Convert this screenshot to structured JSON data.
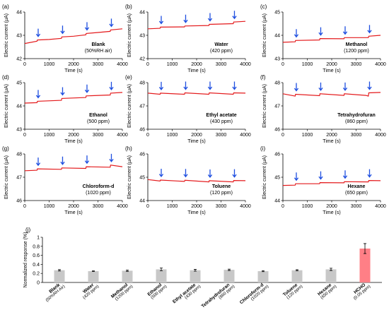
{
  "chart_data": [
    {
      "type": "line",
      "panel_label": "(a)",
      "annotation": "Blank",
      "annotation_sub": "(50%RH air)",
      "xlabel": "Time (s)",
      "ylabel": "Electric current (μA)",
      "xlim": [
        0,
        4000
      ],
      "ylim": [
        42,
        44
      ],
      "yticks": [
        42,
        43,
        44
      ],
      "xticks": [
        0,
        1000,
        2000,
        3000,
        4000
      ],
      "series": [
        {
          "x": [
            0,
            500,
            520,
            1000,
            1500,
            1520,
            2000,
            2500,
            2520,
            3000,
            3500,
            3520,
            4000
          ],
          "y": [
            42.65,
            42.75,
            42.8,
            42.82,
            42.87,
            42.93,
            42.96,
            43.02,
            43.08,
            43.12,
            43.17,
            43.23,
            43.28
          ]
        }
      ],
      "arrows_x": [
        550,
        1550,
        2550,
        3550
      ]
    },
    {
      "type": "line",
      "panel_label": "(b)",
      "annotation": "Water",
      "annotation_sub": "(420 ppm)",
      "xlabel": "Time (s)",
      "ylabel": "Electric current (μA)",
      "xlim": [
        0,
        4000
      ],
      "ylim": [
        42,
        44
      ],
      "yticks": [
        42,
        43,
        44
      ],
      "xticks": [
        0,
        1000,
        2000,
        3000,
        4000
      ],
      "series": [
        {
          "x": [
            0,
            500,
            520,
            1500,
            1520,
            2500,
            2520,
            3500,
            3520,
            4000
          ],
          "y": [
            43.28,
            43.3,
            43.35,
            43.36,
            43.4,
            43.42,
            43.47,
            43.5,
            43.57,
            43.6
          ]
        }
      ],
      "arrows_x": [
        550,
        1550,
        2550,
        3550
      ]
    },
    {
      "type": "line",
      "panel_label": "(c)",
      "annotation": "Methanol",
      "annotation_sub": "(1200 ppm)",
      "xlabel": "Time (s)",
      "ylabel": "Electric current (μA)",
      "xlim": [
        0,
        4000
      ],
      "ylim": [
        43,
        45
      ],
      "yticks": [
        43,
        44,
        45
      ],
      "xticks": [
        0,
        1000,
        2000,
        3000,
        4000
      ],
      "series": [
        {
          "x": [
            0,
            500,
            520,
            1500,
            1520,
            2500,
            2520,
            3500,
            3520,
            4000
          ],
          "y": [
            43.7,
            43.72,
            43.78,
            43.8,
            43.86,
            43.85,
            43.9,
            43.9,
            43.96,
            44.0
          ]
        }
      ],
      "arrows_x": [
        550,
        1550,
        2550,
        3550
      ]
    },
    {
      "type": "line",
      "panel_label": "(d)",
      "annotation": "Ethanol",
      "annotation_sub": "(500 ppm)",
      "xlabel": "Time (s)",
      "ylabel": "Electric current (μA)",
      "xlim": [
        0,
        4000
      ],
      "ylim": [
        43,
        45
      ],
      "yticks": [
        43,
        44,
        45
      ],
      "xticks": [
        0,
        1000,
        2000,
        3000,
        4000
      ],
      "series": [
        {
          "x": [
            0,
            500,
            520,
            1500,
            1520,
            2500,
            2520,
            3500,
            3520,
            4000
          ],
          "y": [
            44.12,
            44.14,
            44.2,
            44.24,
            44.32,
            44.36,
            44.43,
            44.47,
            44.55,
            44.58
          ]
        }
      ],
      "arrows_x": [
        550,
        1550,
        2550,
        3550
      ]
    },
    {
      "type": "line",
      "panel_label": "(e)",
      "annotation": "Ethyl acetate",
      "annotation_sub": "(430 ppm)",
      "xlabel": "Time (s)",
      "ylabel": "Electric current (μA)",
      "xlim": [
        0,
        4000
      ],
      "ylim": [
        46,
        48
      ],
      "yticks": [
        46,
        47,
        48
      ],
      "xticks": [
        0,
        1000,
        2000,
        3000,
        4000
      ],
      "series": [
        {
          "x": [
            0,
            500,
            520,
            1500,
            1520,
            2500,
            2520,
            3500,
            3520,
            4000
          ],
          "y": [
            47.55,
            47.5,
            47.55,
            47.5,
            47.56,
            47.5,
            47.56,
            47.5,
            47.56,
            47.55
          ]
        }
      ],
      "arrows_x": [
        550,
        1550,
        2550,
        3550
      ]
    },
    {
      "type": "line",
      "panel_label": "(f)",
      "annotation": "Tetrahydrofuran",
      "annotation_sub": "(860 ppm)",
      "xlabel": "Time (s)",
      "ylabel": "Electric current (μA)",
      "xlim": [
        0,
        4000
      ],
      "ylim": [
        46,
        48
      ],
      "yticks": [
        46,
        47,
        48
      ],
      "xticks": [
        0,
        1000,
        2000,
        3000,
        4000
      ],
      "series": [
        {
          "x": [
            0,
            500,
            520,
            1500,
            1520,
            2500,
            2520,
            3400,
            3500,
            3520,
            4000
          ],
          "y": [
            47.52,
            47.42,
            47.5,
            47.44,
            47.52,
            47.45,
            47.52,
            47.45,
            47.42,
            47.56,
            47.58
          ]
        }
      ],
      "arrows_x": [
        550,
        1550,
        2550,
        3550
      ]
    },
    {
      "type": "line",
      "panel_label": "(g)",
      "annotation": "Chloroform-d",
      "annotation_sub": "(1020 ppm)",
      "xlabel": "Time (s)",
      "ylabel": "Electric current (μA)",
      "xlim": [
        0,
        4000
      ],
      "ylim": [
        46,
        48
      ],
      "yticks": [
        46,
        47,
        48
      ],
      "xticks": [
        0,
        1000,
        2000,
        3000,
        4000
      ],
      "series": [
        {
          "x": [
            0,
            500,
            520,
            1500,
            1520,
            2500,
            2520,
            3500,
            3520,
            4000
          ],
          "y": [
            47.28,
            47.3,
            47.36,
            47.34,
            47.4,
            47.38,
            47.45,
            47.43,
            47.52,
            47.45
          ]
        }
      ],
      "arrows_x": [
        550,
        1550,
        2550,
        3550
      ]
    },
    {
      "type": "line",
      "panel_label": "(h)",
      "annotation": "Toluene",
      "annotation_sub": "(120 ppm)",
      "xlabel": "Time (s)",
      "ylabel": "Electric current (μA)",
      "xlim": [
        0,
        4000
      ],
      "ylim": [
        44,
        46
      ],
      "yticks": [
        44,
        45,
        46
      ],
      "xticks": [
        0,
        1000,
        2000,
        3000,
        4000
      ],
      "series": [
        {
          "x": [
            0,
            500,
            520,
            1500,
            1520,
            2500,
            2520,
            3500,
            3520,
            4000
          ],
          "y": [
            44.9,
            44.84,
            44.88,
            44.82,
            44.87,
            44.8,
            44.85,
            44.8,
            44.86,
            44.85
          ]
        }
      ],
      "arrows_x": [
        550,
        1550,
        2550,
        3550
      ]
    },
    {
      "type": "line",
      "panel_label": "(i)",
      "annotation": "Hexane",
      "annotation_sub": "(650 ppm)",
      "xlabel": "Time (s)",
      "ylabel": "Electric current (μA)",
      "xlim": [
        0,
        4000
      ],
      "ylim": [
        44,
        46
      ],
      "yticks": [
        44,
        45,
        46
      ],
      "xticks": [
        0,
        1000,
        2000,
        3000,
        4000
      ],
      "series": [
        {
          "x": [
            0,
            500,
            520,
            1500,
            1520,
            2500,
            2520,
            3500,
            3520,
            4000
          ],
          "y": [
            44.65,
            44.66,
            44.72,
            44.72,
            44.77,
            44.76,
            44.81,
            44.8,
            44.86,
            44.85
          ]
        }
      ],
      "arrows_x": [
        550,
        1550,
        2550,
        3550
      ]
    },
    {
      "type": "bar",
      "panel_label": "(j)",
      "ylabel": "Normalized response (%)",
      "ylim": [
        0,
        1.0
      ],
      "yticks": [
        0,
        0.2,
        0.4,
        0.6,
        0.8,
        1.0
      ],
      "categories": [
        "Blank",
        "Water",
        "Methanol",
        "Ethanol",
        "Ethyl acetate",
        "Tetrahydrofuran",
        "Chloroform-d",
        "Toluene",
        "Hexane",
        "HCHO"
      ],
      "sublabels": [
        "(50%RH Air)",
        "(420 ppm)",
        "(1200 ppm)",
        "(500 ppm)",
        "(430 ppm)",
        "(860 ppm)",
        "(1020 ppm)",
        "(120 ppm)",
        "(650 ppm)",
        "(0.05 ppm)"
      ],
      "values": [
        0.27,
        0.25,
        0.26,
        0.29,
        0.27,
        0.28,
        0.25,
        0.27,
        0.29,
        0.75
      ],
      "errors": [
        0.015,
        0.008,
        0.015,
        0.03,
        0.02,
        0.015,
        0.012,
        0.012,
        0.025,
        0.11
      ],
      "bar_colors": [
        "#c8c8c8",
        "#c8c8c8",
        "#c8c8c8",
        "#c8c8c8",
        "#c8c8c8",
        "#c8c8c8",
        "#c8c8c8",
        "#c8c8c8",
        "#c8c8c8",
        "#ff7f86"
      ]
    }
  ],
  "colors": {
    "trace": "#e41a1c",
    "arrow": "#1f4fe0",
    "bar": "#c8c8c8",
    "bar_highlight": "#ff7f86"
  }
}
